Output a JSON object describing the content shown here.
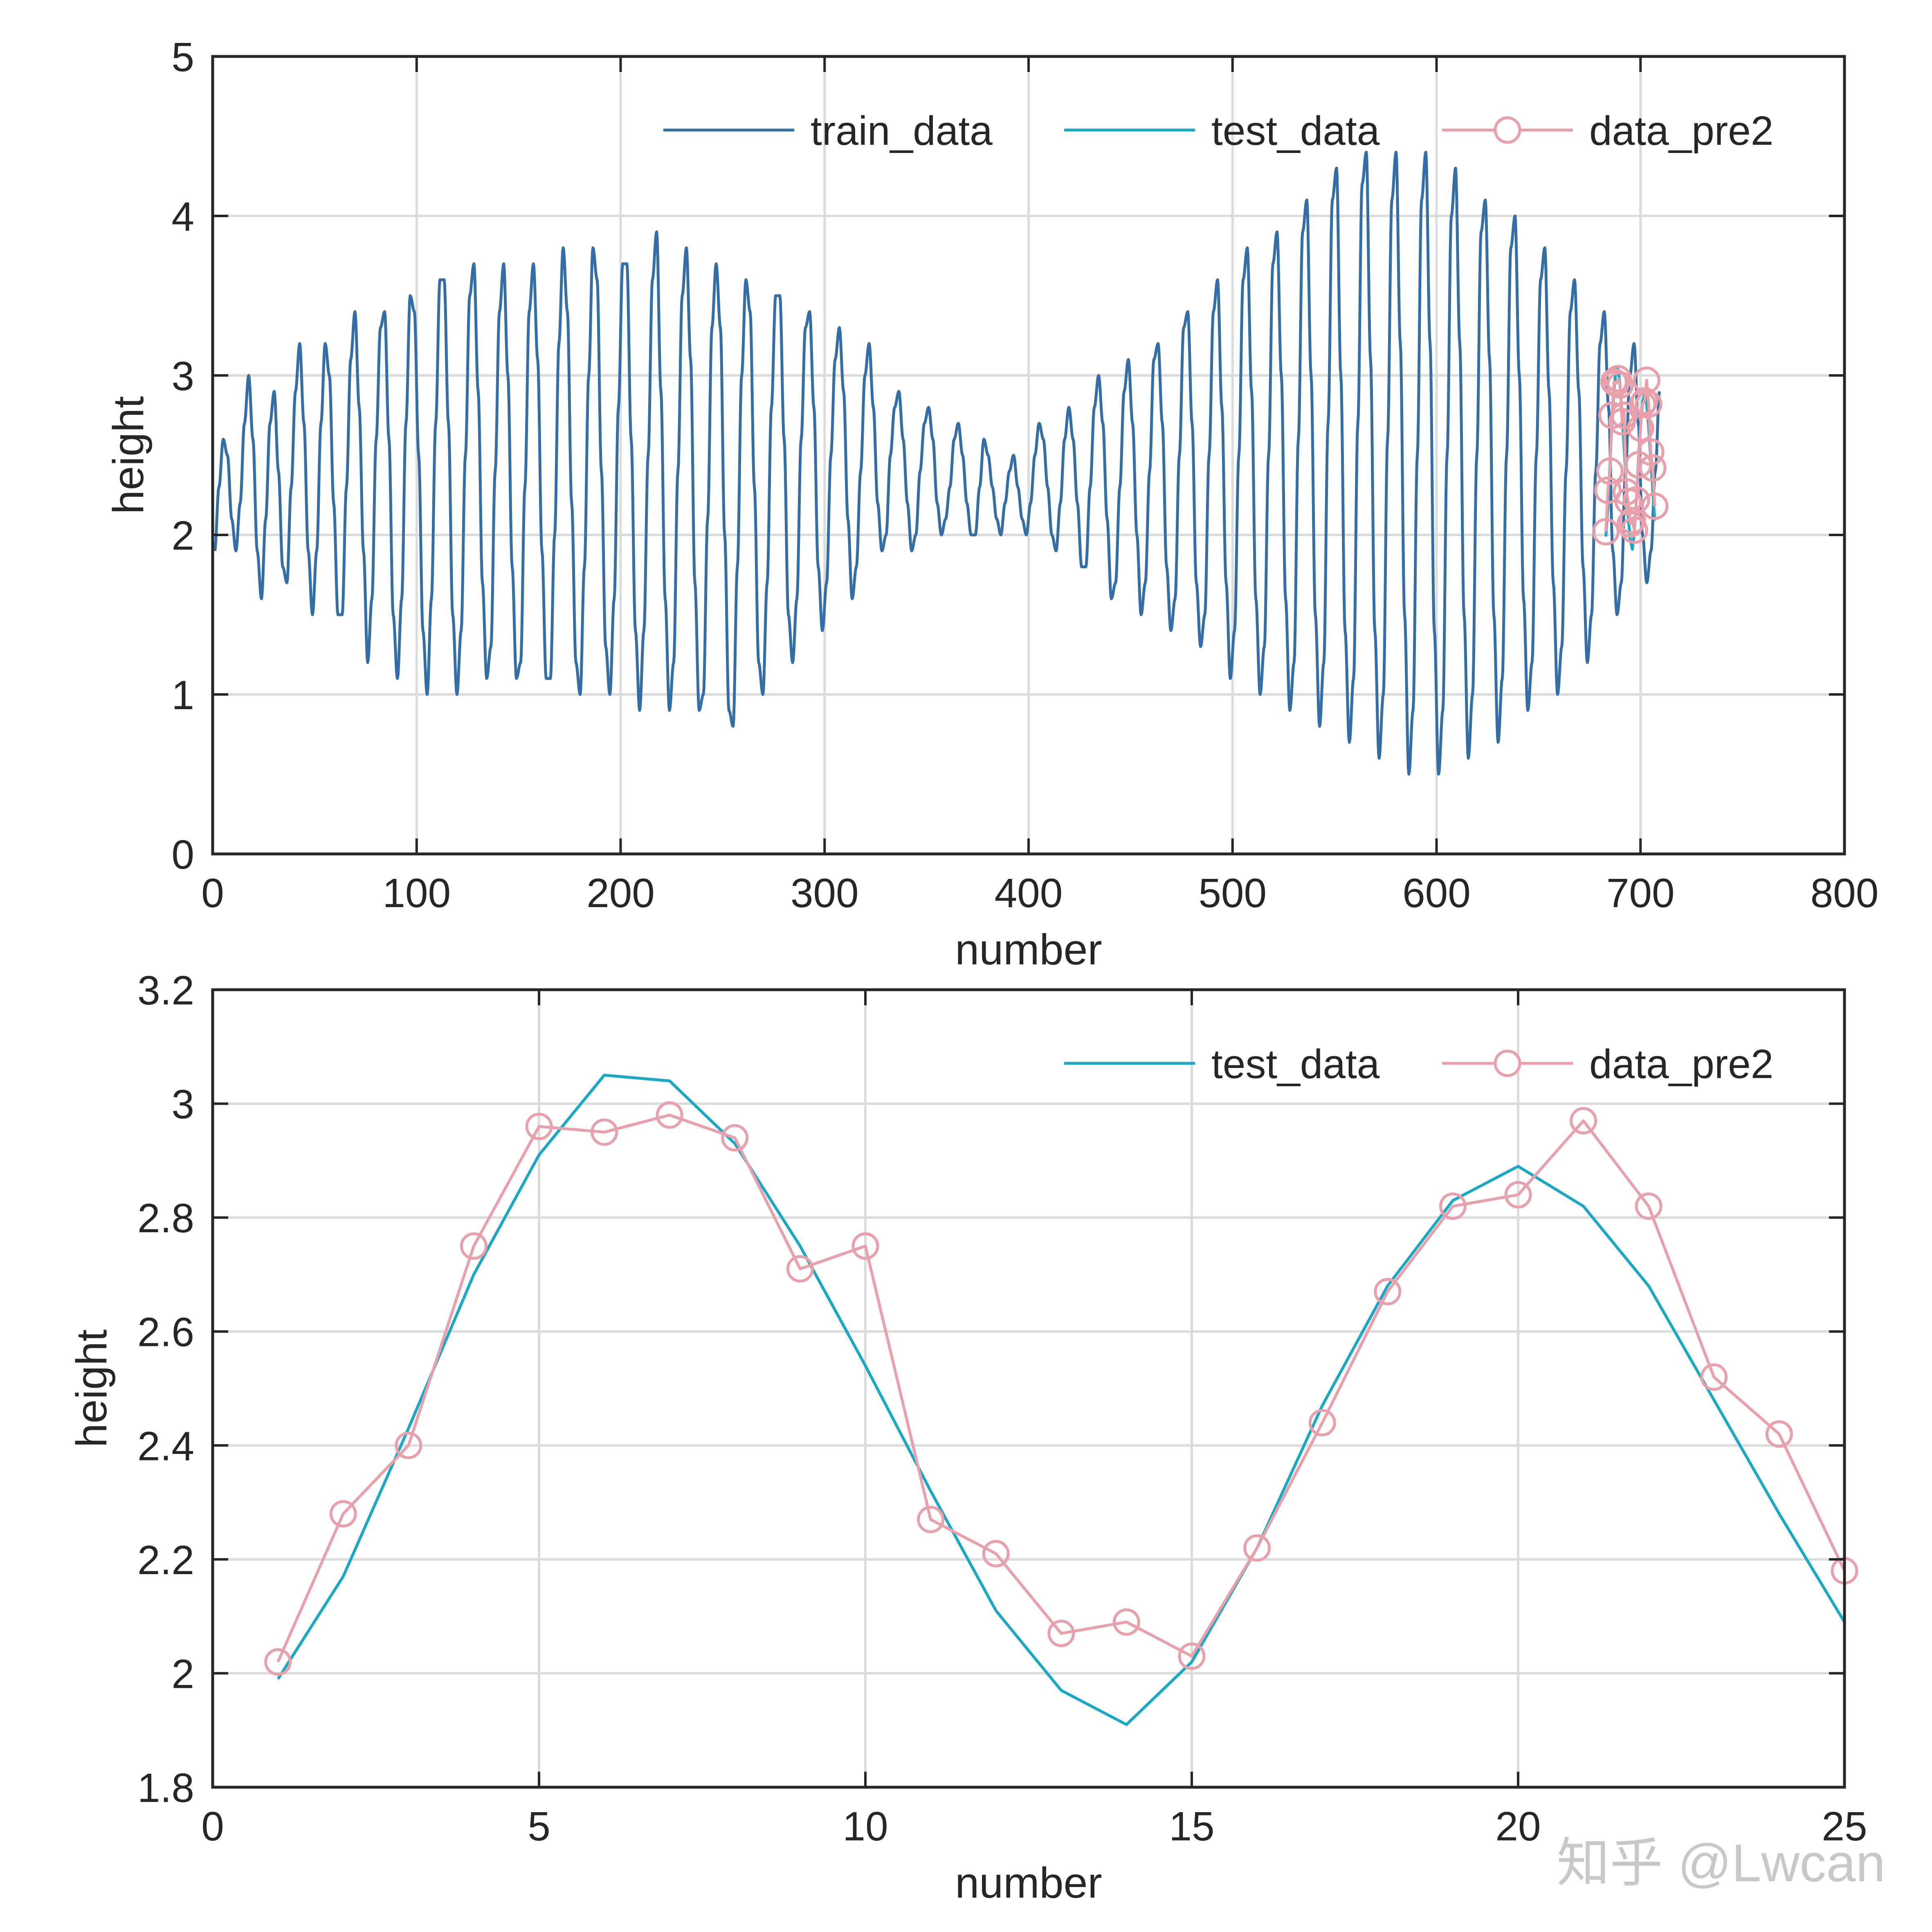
{
  "watermark": "知乎 @Lwcan",
  "colors": {
    "train": "#336ea6",
    "test": "#1aa8c4",
    "pred": "#e8a0aa",
    "grid": "#dcdcdc",
    "axis": "#262626"
  },
  "chart_data": [
    {
      "type": "line",
      "xlabel": "number",
      "ylabel": "height",
      "xlim": [
        0,
        800
      ],
      "ylim": [
        0,
        5
      ],
      "xticks": [
        0,
        100,
        200,
        300,
        400,
        500,
        600,
        700,
        800
      ],
      "yticks": [
        0,
        1,
        2,
        3,
        4,
        5
      ],
      "grid": true,
      "legend_position": "top-right",
      "legend_orientation": "horizontal",
      "series": [
        {
          "name": "train_data",
          "style": "line",
          "color": "#336ea6",
          "x_start": 1,
          "period": 12.5,
          "values": [
            1.9,
            2.3,
            2.6,
            2.5,
            2.1,
            1.9,
            2.2,
            2.7,
            3.0,
            2.6,
            1.9,
            1.6,
            2.1,
            2.7,
            2.9,
            2.4,
            1.8,
            1.7,
            2.3,
            2.9,
            3.2,
            2.7,
            1.9,
            1.5,
            1.9,
            2.7,
            3.2,
            3.0,
            2.2,
            1.5,
            1.5,
            2.3,
            3.1,
            3.4,
            2.8,
            1.9,
            1.2,
            1.6,
            2.6,
            3.3,
            3.4,
            2.6,
            1.5,
            1.1,
            1.6,
            2.7,
            3.5,
            3.4,
            2.5,
            1.4,
            1.0,
            1.6,
            2.7,
            3.6,
            3.6,
            2.7,
            1.5,
            1.0,
            1.4,
            2.5,
            3.5,
            3.7,
            2.9,
            1.7,
            1.1,
            1.3,
            2.4,
            3.4,
            3.7,
            3.0,
            1.8,
            1.1,
            1.2,
            2.3,
            3.4,
            3.7,
            3.1,
            1.9,
            1.1,
            1.1,
            2.0,
            3.2,
            3.8,
            3.4,
            2.2,
            1.2,
            1.0,
            1.8,
            3.0,
            3.8,
            3.6,
            2.4,
            1.3,
            1.0,
            1.6,
            2.8,
            3.7,
            3.7,
            2.6,
            1.4,
            0.9,
            1.4,
            2.5,
            3.6,
            3.9,
            2.9,
            1.6,
            0.9,
            1.2,
            2.4,
            3.5,
            3.8,
            3.1,
            1.7,
            0.9,
            1.0,
            2.1,
            3.3,
            3.7,
            3.3,
            2.0,
            0.9,
            0.8,
            1.8,
            3.0,
            3.6,
            3.4,
            2.3,
            1.2,
            1.0,
            1.7,
            2.8,
            3.5,
            3.5,
            2.6,
            1.5,
            1.2,
            1.6,
            2.6,
            3.3,
            3.4,
            2.8,
            1.8,
            1.4,
            1.7,
            2.5,
            3.1,
            3.3,
            2.9,
            2.1,
            1.6,
            1.8,
            2.4,
            3.0,
            3.2,
            2.8,
            2.2,
            1.9,
            2.0,
            2.5,
            2.8,
            2.9,
            2.6,
            2.2,
            1.9,
            2.0,
            2.4,
            2.7,
            2.8,
            2.6,
            2.2,
            2.0,
            2.1,
            2.3,
            2.6,
            2.7,
            2.5,
            2.2,
            2.0,
            2.0,
            2.3,
            2.6,
            2.5,
            2.3,
            2.1,
            2.0,
            2.2,
            2.4,
            2.5,
            2.3,
            2.1,
            2.0,
            2.2,
            2.5,
            2.7,
            2.6,
            2.3,
            2.0,
            1.9,
            2.2,
            2.6,
            2.8,
            2.6,
            2.2,
            1.8,
            1.8,
            2.3,
            2.8,
            3.0,
            2.7,
            2.1,
            1.6,
            1.7,
            2.3,
            2.9,
            3.1,
            2.7,
            2.0,
            1.5,
            1.7,
            2.4,
            3.1,
            3.2,
            2.7,
            1.8,
            1.4,
            1.6,
            2.5,
            3.3,
            3.4,
            2.7,
            1.7,
            1.3,
            1.5,
            2.5,
            3.4,
            3.6,
            2.8,
            1.7,
            1.1,
            1.4,
            2.5,
            3.6,
            3.8,
            2.9,
            1.6,
            1.0,
            1.3,
            2.5,
            3.7,
            3.9,
            3.0,
            1.6,
            0.9,
            1.2,
            2.6,
            3.9,
            4.1,
            3.0,
            1.5,
            0.8,
            1.2,
            2.7,
            4.1,
            4.3,
            3.0,
            1.4,
            0.7,
            1.1,
            2.7,
            4.2,
            4.4,
            3.1,
            1.4,
            0.6,
            1.0,
            2.6,
            4.1,
            4.4,
            3.2,
            1.5,
            0.5,
            0.9,
            2.5,
            4.1,
            4.4,
            3.2,
            1.4,
            0.5,
            0.9,
            2.5,
            4.0,
            4.3,
            3.2,
            1.5,
            0.6,
            1.0,
            2.5,
            3.9,
            4.1,
            3.1,
            1.5,
            0.7,
            1.1,
            2.5,
            3.8,
            4.0,
            3.0,
            1.6,
            0.9,
            1.2,
            2.5,
            3.6,
            3.8,
            2.9,
            1.7,
            1.0,
            1.3,
            2.4,
            3.4,
            3.6,
            2.9,
            1.8,
            1.2,
            1.5,
            2.4,
            3.2,
            3.4,
            2.8,
            1.9,
            1.5,
            1.7,
            2.4,
            3.0,
            3.2,
            2.7,
            2.0,
            1.7,
            1.9,
            2.4,
            2.9
          ],
          "note_values_are_estimates": true
        },
        {
          "name": "test_data",
          "style": "line",
          "color": "#1aa8c4",
          "x_start": 683,
          "values": [
            1.99,
            2.17,
            2.43,
            2.7,
            2.91,
            3.05,
            3.04,
            2.93,
            2.75,
            2.54,
            2.32,
            2.11,
            1.97,
            1.91,
            2.02,
            2.22,
            2.47,
            2.68,
            2.83,
            2.89,
            2.82,
            2.68,
            2.48,
            2.28,
            2.09
          ]
        },
        {
          "name": "data_pre2",
          "style": "line-marker-circle",
          "color": "#e8a0aa",
          "x_start": 683,
          "values": [
            2.02,
            2.28,
            2.4,
            2.75,
            2.96,
            2.95,
            2.98,
            2.94,
            2.71,
            2.75,
            2.27,
            2.21,
            2.07,
            2.09,
            2.03,
            2.22,
            2.44,
            2.67,
            2.82,
            2.84,
            2.97,
            2.82,
            2.52,
            2.42,
            2.18
          ]
        }
      ]
    },
    {
      "type": "line",
      "xlabel": "number",
      "ylabel": "height",
      "xlim": [
        0,
        25
      ],
      "ylim": [
        1.8,
        3.2
      ],
      "xticks": [
        0,
        5,
        10,
        15,
        20,
        25
      ],
      "yticks": [
        1.8,
        2,
        2.2,
        2.4,
        2.6,
        2.8,
        3,
        3.2
      ],
      "ytick_labels": [
        "1.8",
        "2",
        "2.2",
        "2.4",
        "2.6",
        "2.8",
        "3",
        "3.2"
      ],
      "grid": true,
      "legend_position": "top-right",
      "legend_orientation": "horizontal",
      "series": [
        {
          "name": "test_data",
          "style": "line",
          "color": "#1aa8c4",
          "x": [
            1,
            2,
            3,
            4,
            5,
            6,
            7,
            8,
            9,
            10,
            11,
            12,
            13,
            14,
            15,
            16,
            17,
            18,
            19,
            20,
            21,
            22,
            23,
            24,
            25
          ],
          "values": [
            1.99,
            2.17,
            2.43,
            2.7,
            2.91,
            3.05,
            3.04,
            2.93,
            2.75,
            2.54,
            2.32,
            2.11,
            1.97,
            1.91,
            2.02,
            2.22,
            2.47,
            2.68,
            2.83,
            2.89,
            2.82,
            2.68,
            2.48,
            2.28,
            2.09
          ]
        },
        {
          "name": "data_pre2",
          "style": "line-marker-circle",
          "color": "#e8a0aa",
          "x": [
            1,
            2,
            3,
            4,
            5,
            6,
            7,
            8,
            9,
            10,
            11,
            12,
            13,
            14,
            15,
            16,
            17,
            18,
            19,
            20,
            21,
            22,
            23,
            24,
            25
          ],
          "values": [
            2.02,
            2.28,
            2.4,
            2.75,
            2.96,
            2.95,
            2.98,
            2.94,
            2.71,
            2.75,
            2.27,
            2.21,
            2.07,
            2.09,
            2.03,
            2.22,
            2.44,
            2.67,
            2.82,
            2.84,
            2.97,
            2.82,
            2.52,
            2.42,
            2.18
          ]
        }
      ]
    }
  ]
}
